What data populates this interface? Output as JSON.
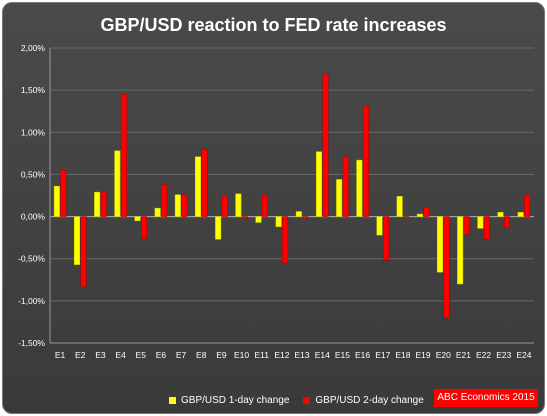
{
  "colors": {
    "series_1": "#ffff00",
    "series_2": "#ff0000",
    "background": "#444444",
    "grid": "#6a6a6a",
    "text": "#ffffff"
  },
  "credit": "ABC Economics 2015",
  "chart_data": {
    "type": "bar",
    "title": "GBP/USD reaction to FED rate increases",
    "xlabel": "",
    "ylabel": "",
    "ylim": [
      -1.5,
      2.0
    ],
    "yticks": [
      "-1,50%",
      "-1,00%",
      "-0,50%",
      "0,00%",
      "0,50%",
      "1,00%",
      "1,50%",
      "2,00%"
    ],
    "grid": true,
    "legend_position": "bottom",
    "categories": [
      "E1",
      "E2",
      "E3",
      "E4",
      "E5",
      "E6",
      "E7",
      "E8",
      "E9",
      "E10",
      "E11",
      "E12",
      "E13",
      "E14",
      "E15",
      "E16",
      "E17",
      "E18",
      "E19",
      "E20",
      "E21",
      "E22",
      "E23",
      "E24"
    ],
    "series": [
      {
        "name": "GBP/USD 1-day change",
        "values": [
          0.36,
          -0.57,
          0.29,
          0.78,
          -0.05,
          0.1,
          0.26,
          0.71,
          -0.27,
          0.27,
          -0.07,
          -0.12,
          0.06,
          0.77,
          0.44,
          0.67,
          -0.22,
          0.24,
          0.03,
          -0.66,
          -0.8,
          -0.14,
          0.05,
          0.05
        ]
      },
      {
        "name": "GBP/USD 2-day change",
        "values": [
          0.55,
          -0.83,
          0.29,
          1.45,
          -0.26,
          0.38,
          0.26,
          0.8,
          0.24,
          -0.02,
          0.26,
          -0.55,
          -0.02,
          1.69,
          0.71,
          1.32,
          -0.52,
          0.0,
          0.11,
          -1.2,
          -0.21,
          -0.27,
          -0.13,
          0.26
        ]
      }
    ]
  }
}
